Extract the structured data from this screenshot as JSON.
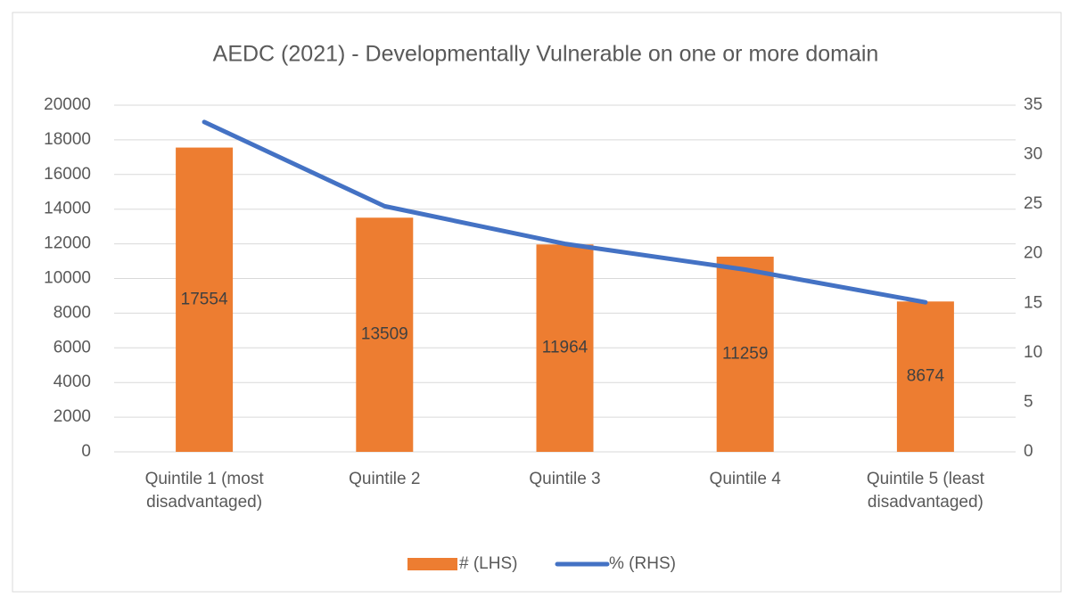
{
  "chart_data": {
    "type": "bar",
    "title": "AEDC (2021) - Developmentally Vulnerable on one or more domain",
    "categories": [
      "Quintile 1 (most\ndisadvantaged)",
      "Quintile 2",
      "Quintile 3",
      "Quintile 4",
      "Quintile 5 (least\ndisadvantaged)"
    ],
    "series": [
      {
        "name": "# (LHS)",
        "type": "bar",
        "color": "#ed7d31",
        "values": [
          17554,
          13509,
          11964,
          11259,
          8674
        ]
      },
      {
        "name": "% (RHS)",
        "type": "line",
        "color": "#4472c4",
        "axis": "y2",
        "values": [
          33.3,
          24.8,
          21.0,
          18.4,
          15.1
        ]
      }
    ],
    "ylim": [
      0,
      20000
    ],
    "yticks": [
      0,
      2000,
      4000,
      6000,
      8000,
      10000,
      12000,
      14000,
      16000,
      18000,
      20000
    ],
    "y2lim": [
      0,
      35
    ],
    "y2ticks": [
      0,
      5,
      10,
      15,
      20,
      25,
      30,
      35
    ],
    "grid": true,
    "legend": "bottom"
  }
}
